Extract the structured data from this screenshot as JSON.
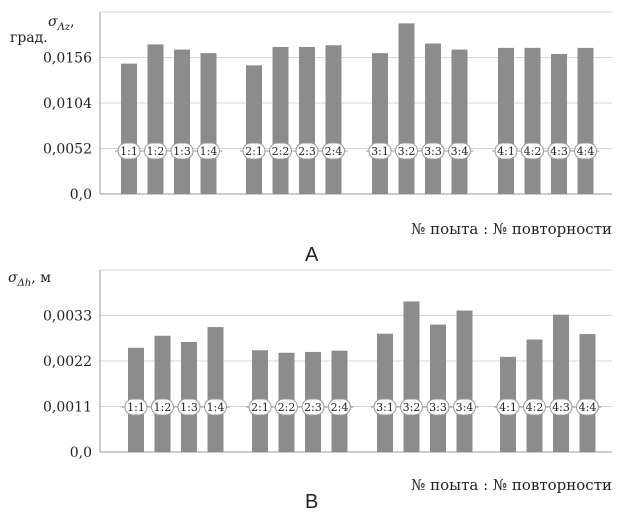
{
  "chart_data": [
    {
      "type": "bar",
      "panel_label": "A",
      "ylabel_var": "σ",
      "ylabel_sub": "Λz",
      "ylabel_after": ",",
      "ylabel_unit": "град.",
      "xlabel": "№ поыта : № повторности",
      "ylim": [
        0,
        0.0208
      ],
      "yticks": [
        "0,0",
        "0,0052",
        "0,0104",
        "0,0156"
      ],
      "ytick_values": [
        0,
        0.0052,
        0.0104,
        0.0156
      ],
      "grid": true,
      "groups": [
        {
          "categories": [
            "1:1",
            "1:2",
            "1:3",
            "1:4"
          ],
          "values": [
            0.0149,
            0.0171,
            0.0165,
            0.0161
          ]
        },
        {
          "categories": [
            "2:1",
            "2:2",
            "2:3",
            "2:4"
          ],
          "values": [
            0.0147,
            0.0168,
            0.0168,
            0.017
          ]
        },
        {
          "categories": [
            "3:1",
            "3:2",
            "3:3",
            "3:4"
          ],
          "values": [
            0.0161,
            0.0195,
            0.0172,
            0.0165
          ]
        },
        {
          "categories": [
            "4:1",
            "4:2",
            "4:3",
            "4:4"
          ],
          "values": [
            0.0167,
            0.0167,
            0.016,
            0.0167
          ]
        }
      ]
    },
    {
      "type": "bar",
      "panel_label": "B",
      "ylabel_var": "σ",
      "ylabel_sub": "Δh",
      "ylabel_after": ", м",
      "ylabel_unit": "",
      "xlabel": "№ поыта : № повторности",
      "ylim": [
        0,
        0.0044
      ],
      "yticks": [
        "0,0",
        "0,0011",
        "0,0022",
        "0,0033"
      ],
      "ytick_values": [
        0,
        0.0011,
        0.0022,
        0.0033
      ],
      "grid": true,
      "groups": [
        {
          "categories": [
            "1:1",
            "1:2",
            "1:3",
            "1:4"
          ],
          "values": [
            0.00252,
            0.00281,
            0.00266,
            0.00302
          ]
        },
        {
          "categories": [
            "2:1",
            "2:2",
            "2:3",
            "2:4"
          ],
          "values": [
            0.00246,
            0.0024,
            0.00242,
            0.00245
          ]
        },
        {
          "categories": [
            "3:1",
            "3:2",
            "3:3",
            "3:4"
          ],
          "values": [
            0.00286,
            0.00364,
            0.00308,
            0.00342
          ]
        },
        {
          "categories": [
            "4:1",
            "4:2",
            "4:3",
            "4:4"
          ],
          "values": [
            0.0023,
            0.00272,
            0.00332,
            0.00285
          ]
        }
      ]
    }
  ],
  "colors": {
    "bar": "#8c8c8c",
    "grid": "#d4d4d4",
    "axis": "#9a9a9a",
    "label_bg": "#ffffff",
    "label_stroke": "#999999",
    "text": "#222222"
  }
}
